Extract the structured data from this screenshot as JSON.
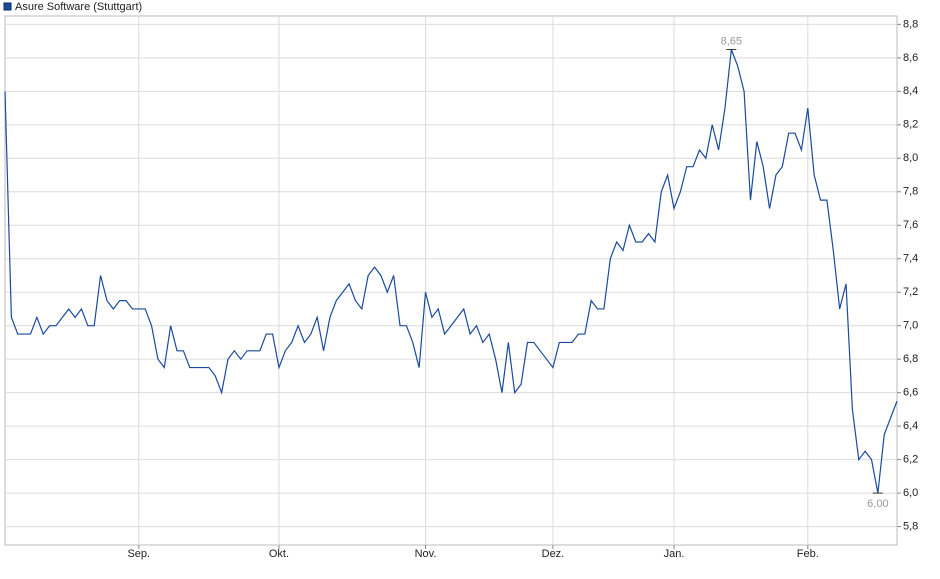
{
  "chart_data": {
    "type": "line",
    "legend": "Asure Software (Stuttgart)",
    "color": "#1a4a9c",
    "grid": true,
    "xlim": [
      0,
      140
    ],
    "xticks": [
      {
        "value": 21,
        "label": "Sep."
      },
      {
        "value": 43,
        "label": "Okt."
      },
      {
        "value": 66,
        "label": "Nov."
      },
      {
        "value": 86,
        "label": "Dez."
      },
      {
        "value": 105,
        "label": "Jan."
      },
      {
        "value": 126,
        "label": "Feb."
      }
    ],
    "ylim": [
      5.69,
      8.85
    ],
    "yticks": [
      {
        "value": 5.8,
        "label": "5,8"
      },
      {
        "value": 6.0,
        "label": "6,0"
      },
      {
        "value": 6.2,
        "label": "6,2"
      },
      {
        "value": 6.4,
        "label": "6,4"
      },
      {
        "value": 6.6,
        "label": "6,6"
      },
      {
        "value": 6.8,
        "label": "6,8"
      },
      {
        "value": 7.0,
        "label": "7,0"
      },
      {
        "value": 7.2,
        "label": "7,2"
      },
      {
        "value": 7.4,
        "label": "7,4"
      },
      {
        "value": 7.6,
        "label": "7,6"
      },
      {
        "value": 7.8,
        "label": "7,8"
      },
      {
        "value": 8.0,
        "label": "8,0"
      },
      {
        "value": 8.2,
        "label": "8,2"
      },
      {
        "value": 8.4,
        "label": "8,4"
      },
      {
        "value": 8.6,
        "label": "8,6"
      },
      {
        "value": 8.8,
        "label": "8,8"
      }
    ],
    "annotations": [
      {
        "label": "8,65",
        "value": 8.65
      },
      {
        "label": "6,00",
        "value": 6.0
      }
    ],
    "values": [
      8.4,
      7.05,
      6.95,
      6.95,
      6.95,
      7.05,
      6.95,
      7.0,
      7.0,
      7.05,
      7.1,
      7.05,
      7.1,
      7.0,
      7.0,
      7.3,
      7.15,
      7.1,
      7.15,
      7.15,
      7.1,
      7.1,
      7.1,
      7.0,
      6.8,
      6.75,
      7.0,
      6.85,
      6.85,
      6.75,
      6.75,
      6.75,
      6.75,
      6.7,
      6.6,
      6.8,
      6.85,
      6.8,
      6.85,
      6.85,
      6.85,
      6.95,
      6.95,
      6.75,
      6.85,
      6.9,
      7.0,
      6.9,
      6.95,
      7.05,
      6.85,
      7.05,
      7.15,
      7.2,
      7.25,
      7.15,
      7.1,
      7.3,
      7.35,
      7.3,
      7.2,
      7.3,
      7.0,
      7.0,
      6.9,
      6.75,
      7.2,
      7.05,
      7.1,
      6.95,
      7.0,
      7.05,
      7.1,
      6.95,
      7.0,
      6.9,
      6.95,
      6.8,
      6.6,
      6.9,
      6.6,
      6.65,
      6.9,
      6.9,
      6.85,
      6.8,
      6.75,
      6.9,
      6.9,
      6.9,
      6.95,
      6.95,
      7.15,
      7.1,
      7.1,
      7.4,
      7.5,
      7.45,
      7.6,
      7.5,
      7.5,
      7.55,
      7.5,
      7.8,
      7.9,
      7.7,
      7.8,
      7.95,
      7.95,
      8.05,
      8.0,
      8.2,
      8.05,
      8.3,
      8.65,
      8.55,
      8.4,
      7.75,
      8.1,
      7.95,
      7.7,
      7.9,
      7.95,
      8.15,
      8.15,
      8.05,
      8.3,
      7.9,
      7.75,
      7.75,
      7.45,
      7.1,
      7.25,
      6.5,
      6.2,
      6.25,
      6.2,
      6.0,
      6.35,
      6.45,
      6.55
    ]
  }
}
